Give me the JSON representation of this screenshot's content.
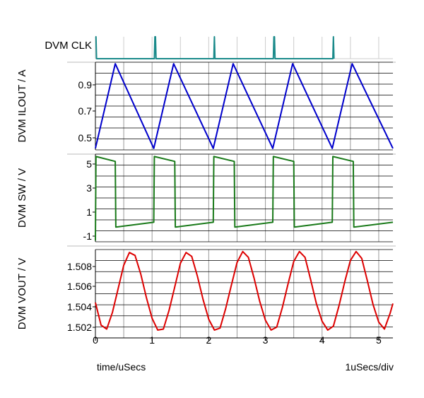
{
  "chart_data": {
    "type": "line",
    "x_unit_label": "time/uSecs",
    "div_label": "1uSecs/div",
    "xlim": [
      0,
      5.25
    ],
    "x_ticks": [
      "0",
      "1",
      "2",
      "3",
      "4",
      "5"
    ],
    "colors": {
      "clk": "#1a8a8a",
      "ilout": "#0000cc",
      "sw": "#1a7a1a",
      "vout": "#dd0000",
      "grid": "#000000"
    },
    "panels": [
      {
        "ylabel": "DVM CLK",
        "y_ticks": [],
        "series": [
          {
            "x": [
              0,
              0.01,
              0.02,
              1.04,
              1.05,
              1.06,
              1.07,
              2.09,
              2.1,
              2.11,
              3.14,
              3.15,
              3.16,
              3.17,
              4.19,
              4.2,
              4.21
            ],
            "y": [
              1,
              1,
              0,
              0,
              1,
              1,
              0,
              0,
              1,
              0,
              0,
              1,
              1,
              0,
              0,
              1,
              0
            ]
          }
        ]
      },
      {
        "ylabel": "DVM ILOUT / A",
        "y_ticks": [
          "0.5",
          "0.7",
          "0.9"
        ],
        "ylim": [
          0.46,
          1.05
        ],
        "series": [
          {
            "x": [
              0,
              0.35,
              1.03,
              1.38,
              2.08,
              2.43,
              3.13,
              3.48,
              4.18,
              4.53,
              5.25
            ],
            "y": [
              0.47,
              1.04,
              0.47,
              1.04,
              0.47,
              1.04,
              0.47,
              1.04,
              0.47,
              1.04,
              0.47
            ]
          }
        ]
      },
      {
        "ylabel": "DVM SW / V",
        "y_ticks": [
          "-1",
          "1",
          "3",
          "5"
        ],
        "ylim": [
          -1.6,
          5.6
        ],
        "series": [
          {
            "x": [
              0,
              0.01,
              0.35,
              0.36,
              1.03,
              1.04,
              1.4,
              1.41,
              2.08,
              2.09,
              2.45,
              2.46,
              3.13,
              3.14,
              3.5,
              3.51,
              4.18,
              4.19,
              4.55,
              4.56,
              5.25
            ],
            "y": [
              -1.5,
              5.4,
              5.0,
              -0.4,
              0.0,
              5.4,
              5.0,
              -0.4,
              0.0,
              5.4,
              5.0,
              -0.4,
              0.0,
              5.4,
              5.0,
              -0.4,
              0.0,
              5.4,
              5.0,
              -0.4,
              0.0
            ]
          }
        ]
      },
      {
        "ylabel": "DVM VOUT / V",
        "y_ticks": [
          "1.502",
          "1.504",
          "1.506",
          "1.508"
        ],
        "ylim": [
          1.5005,
          1.5095
        ],
        "series": [
          {
            "x": [
              0,
              0.1,
              0.2,
              0.3,
              0.4,
              0.5,
              0.6,
              0.7,
              0.8,
              0.9,
              1.0,
              1.1,
              1.2,
              1.3,
              1.4,
              1.5,
              1.6,
              1.7,
              1.8,
              1.9,
              2.0,
              2.1,
              2.2,
              2.3,
              2.4,
              2.5,
              2.6,
              2.7,
              2.8,
              2.9,
              3.0,
              3.1,
              3.2,
              3.3,
              3.4,
              3.5,
              3.6,
              3.7,
              3.8,
              3.9,
              4.0,
              4.1,
              4.2,
              4.3,
              4.4,
              4.5,
              4.6,
              4.7,
              4.8,
              4.9,
              5.0,
              5.1,
              5.2,
              5.25
            ],
            "y": [
              1.5041,
              1.5018,
              1.5014,
              1.5031,
              1.5055,
              1.5079,
              1.5092,
              1.5089,
              1.507,
              1.5046,
              1.5025,
              1.5013,
              1.5014,
              1.5033,
              1.5057,
              1.5081,
              1.5092,
              1.5088,
              1.5068,
              1.5044,
              1.5024,
              1.5013,
              1.5015,
              1.5035,
              1.5059,
              1.5082,
              1.5093,
              1.5087,
              1.5066,
              1.5042,
              1.5023,
              1.5013,
              1.5016,
              1.5036,
              1.506,
              1.5083,
              1.5093,
              1.5087,
              1.5064,
              1.504,
              1.5022,
              1.5013,
              1.5017,
              1.5038,
              1.5062,
              1.5084,
              1.5093,
              1.5086,
              1.5063,
              1.5039,
              1.5021,
              1.5014,
              1.503,
              1.504
            ]
          }
        ]
      }
    ]
  }
}
